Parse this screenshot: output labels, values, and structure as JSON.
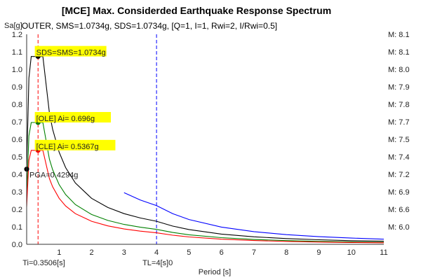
{
  "chart_data": {
    "type": "line",
    "title": "[MCE] Max. Considerded Earthquake Response Spectrum",
    "subtitle": "OUTER, SMS=1.0734g, SDS=1.0734g, [Q=1, I=1, Rwi=2, I/Rwi=0.5]",
    "xlabel": "Period [s]",
    "ylabel": "Sa[g]",
    "xlim": [
      0,
      11
    ],
    "ylim": [
      0,
      1.2
    ],
    "x_ticks": [
      "1",
      "2",
      "3",
      "4",
      "5",
      "6",
      "7",
      "8",
      "9",
      "10",
      "11"
    ],
    "y_ticks": [
      "0.0",
      "0.1",
      "0.2",
      "0.3",
      "0.4",
      "0.5",
      "0.6",
      "0.7",
      "0.8",
      "0.9",
      "1.0",
      "1.1",
      "1.2"
    ],
    "right_labels": [
      {
        "y": 1.2,
        "text": "M: 8.1"
      },
      {
        "y": 1.1,
        "text": "M: 8.1"
      },
      {
        "y": 1.0,
        "text": "M: 8.0"
      },
      {
        "y": 0.9,
        "text": "M: 7.9"
      },
      {
        "y": 0.8,
        "text": "M: 7.8"
      },
      {
        "y": 0.7,
        "text": "M: 7.7"
      },
      {
        "y": 0.6,
        "text": "M: 7.5"
      },
      {
        "y": 0.5,
        "text": "M: 7.4"
      },
      {
        "y": 0.4,
        "text": "M: 7.2"
      },
      {
        "y": 0.3,
        "text": "M: 6.9"
      },
      {
        "y": 0.2,
        "text": "M: 6.6"
      },
      {
        "y": 0.1,
        "text": "M: 6.0"
      }
    ],
    "series": [
      {
        "color": "#000000",
        "values": [
          [
            0,
            0.4294
          ],
          [
            0.07,
            0.95
          ],
          [
            0.14,
            1.0734
          ],
          [
            0.5,
            1.0734
          ],
          [
            0.7,
            0.7513
          ],
          [
            0.8,
            0.6574
          ],
          [
            1,
            0.5259
          ],
          [
            1.2,
            0.4383
          ],
          [
            1.5,
            0.3506
          ],
          [
            2,
            0.263
          ],
          [
            2.5,
            0.2104
          ],
          [
            3,
            0.1753
          ],
          [
            3.5,
            0.1503
          ],
          [
            4,
            0.1315
          ],
          [
            4.5,
            0.1039
          ],
          [
            5,
            0.0842
          ],
          [
            6,
            0.0584
          ],
          [
            7,
            0.0429
          ],
          [
            8,
            0.0329
          ],
          [
            9,
            0.026
          ],
          [
            10,
            0.021
          ],
          [
            11,
            0.0174
          ]
        ]
      },
      {
        "color": "#008000",
        "values": [
          [
            0,
            0.279
          ],
          [
            0.07,
            0.62
          ],
          [
            0.14,
            0.696
          ],
          [
            0.5,
            0.696
          ],
          [
            0.7,
            0.487
          ],
          [
            0.8,
            0.4263
          ],
          [
            1,
            0.341
          ],
          [
            1.2,
            0.2842
          ],
          [
            1.5,
            0.2273
          ],
          [
            2,
            0.1705
          ],
          [
            2.5,
            0.1364
          ],
          [
            3,
            0.1137
          ],
          [
            3.5,
            0.0974
          ],
          [
            4,
            0.0853
          ],
          [
            4.5,
            0.0674
          ],
          [
            5,
            0.0546
          ],
          [
            6,
            0.0379
          ],
          [
            7,
            0.0278
          ],
          [
            8,
            0.0213
          ],
          [
            9,
            0.0168
          ],
          [
            10,
            0.0136
          ],
          [
            11,
            0.0113
          ]
        ]
      },
      {
        "color": "#ff0000",
        "values": [
          [
            0,
            0.2147
          ],
          [
            0.07,
            0.48
          ],
          [
            0.14,
            0.5367
          ],
          [
            0.5,
            0.5367
          ],
          [
            0.7,
            0.3757
          ],
          [
            0.8,
            0.3287
          ],
          [
            1,
            0.263
          ],
          [
            1.2,
            0.2191
          ],
          [
            1.5,
            0.1753
          ],
          [
            2,
            0.1315
          ],
          [
            2.5,
            0.1052
          ],
          [
            3,
            0.0877
          ],
          [
            3.5,
            0.0751
          ],
          [
            4,
            0.0657
          ],
          [
            4.5,
            0.0519
          ],
          [
            5,
            0.0421
          ],
          [
            6,
            0.0292
          ],
          [
            7,
            0.0215
          ],
          [
            8,
            0.0164
          ],
          [
            9,
            0.013
          ],
          [
            10,
            0.0105
          ],
          [
            11,
            0.0087
          ]
        ]
      },
      {
        "color": "#0000ff",
        "values": [
          [
            3,
            0.295
          ],
          [
            3.5,
            0.2529
          ],
          [
            4,
            0.2213
          ],
          [
            4.5,
            0.1749
          ],
          [
            5,
            0.1416
          ],
          [
            6,
            0.0984
          ],
          [
            7,
            0.0723
          ],
          [
            8,
            0.0553
          ],
          [
            9,
            0.0437
          ],
          [
            10,
            0.0354
          ],
          [
            11,
            0.0293
          ]
        ]
      }
    ],
    "points": [
      {
        "x": 0.0,
        "y": 0.4294,
        "color": "#000000"
      },
      {
        "x": 0.3506,
        "y": 1.0734,
        "color": "#000000"
      },
      {
        "x": 0.3506,
        "y": 0.696,
        "color": "#008000"
      },
      {
        "x": 0.3506,
        "y": 0.5367,
        "color": "#ff0000"
      }
    ],
    "annotations": [
      {
        "x": 0.1,
        "y": 1.0734,
        "text": "SDS=SMS=1.0734g",
        "highlight": "#ffff00"
      },
      {
        "x": 0.1,
        "y": 0.696,
        "text": "[OLE] Ai= 0.696g",
        "highlight": "#ffff00"
      },
      {
        "x": 0.1,
        "y": 0.5367,
        "text": "[CLE] Ai= 0.5367g",
        "highlight": "#ffff00"
      },
      {
        "x": 0.1,
        "y": 0.4294,
        "text": "PGA=0.4294g",
        "highlight": ""
      }
    ],
    "vlines": [
      {
        "x": 0.3506,
        "color": "#ff0000",
        "label": "Ti=0.3506[s]"
      },
      {
        "x": 4,
        "color": "#0000ff",
        "label": "TL=4[s]0"
      }
    ],
    "grid": false,
    "legend": "none"
  }
}
